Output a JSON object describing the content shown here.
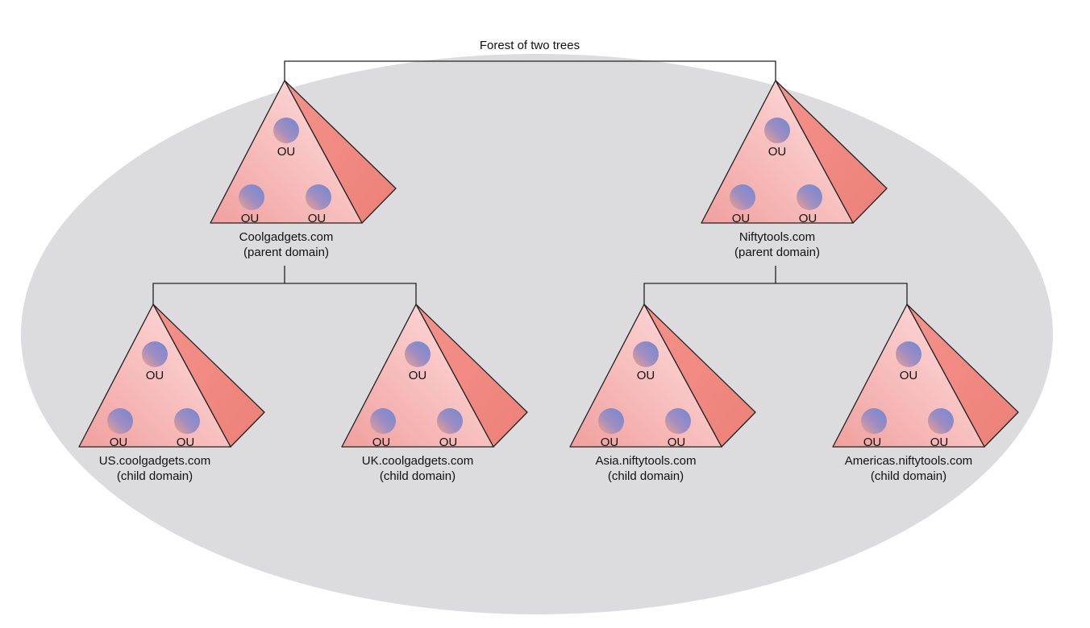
{
  "title": "Forest of two trees",
  "colors": {
    "background_ellipse": "#dcdcde",
    "pyramid_front_light": "#fbd3d2",
    "pyramid_front_dark": "#f29e9c",
    "pyramid_side": "#f08a82",
    "ou_blue": "#7b8ed2",
    "ou_orange": "#ef9f8f",
    "connector": "#222222"
  },
  "ou_label": "OU",
  "trees": [
    {
      "parent": {
        "name": "Coolgadgets.com",
        "role": "(parent domain)"
      },
      "children": [
        {
          "name": "US.coolgadgets.com",
          "role": "(child domain)"
        },
        {
          "name": "UK.coolgadgets.com",
          "role": "(child domain)"
        }
      ]
    },
    {
      "parent": {
        "name": "Niftytools.com",
        "role": "(parent domain)"
      },
      "children": [
        {
          "name": "Asia.niftytools.com",
          "role": "(child domain)"
        },
        {
          "name": "Americas.niftytools.com",
          "role": "(child domain)"
        }
      ]
    }
  ]
}
